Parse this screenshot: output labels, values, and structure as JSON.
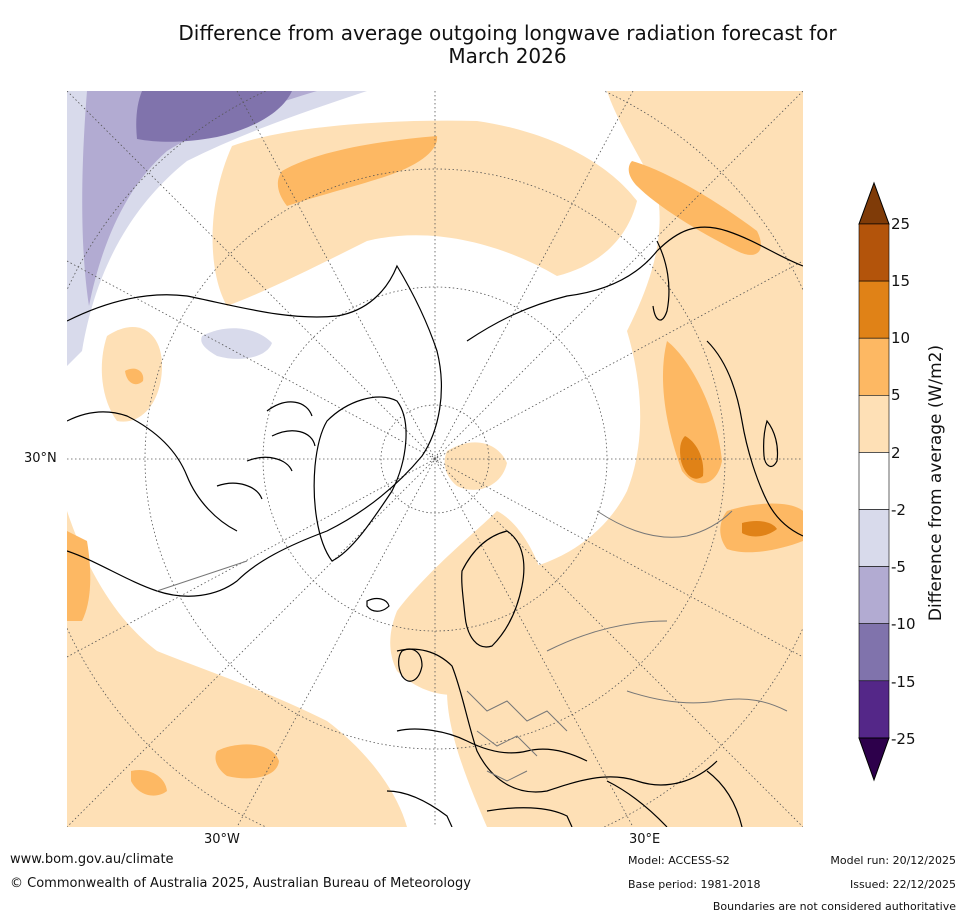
{
  "title_line1": "Difference from average outgoing longwave radiation forecast for",
  "title_line2": "March 2026",
  "map": {
    "projection": "north polar stereographic",
    "lat_label": "30°N",
    "lon_labels": [
      "30°W",
      "30°E"
    ]
  },
  "colorbar": {
    "label": "Difference from average (W/m2)",
    "ticks": [
      "25",
      "15",
      "10",
      "5",
      "2",
      "-2",
      "-5",
      "-10",
      "-15",
      "-25"
    ],
    "band_colors": [
      "#b3540b",
      "#e08217",
      "#fdb863",
      "#fee0b6",
      "#ffffff",
      "#d8daeb",
      "#b2abd2",
      "#8073ac",
      "#542788"
    ],
    "top_extension_color": "#7f3b08",
    "bottom_extension_color": "#2d004b"
  },
  "palette": {
    "pos_2_5": "#fee0b6",
    "pos_5_10": "#fdb863",
    "pos_10_15": "#e08217",
    "neg_2_5": "#d8daeb",
    "neg_5_10": "#b2abd2",
    "neg_10_15": "#8073ac"
  },
  "footer": {
    "website": "www.bom.gov.au/climate",
    "copyright": "© Commonwealth of Australia 2025, Australian Bureau of Meteorology",
    "model": "Model: ACCESS-S2",
    "base_period": "Base period: 1981-2018",
    "model_run": "Model run: 20/12/2025",
    "issued": "Issued: 22/12/2025",
    "disclaimer": "Boundaries are not considered authoritative"
  }
}
